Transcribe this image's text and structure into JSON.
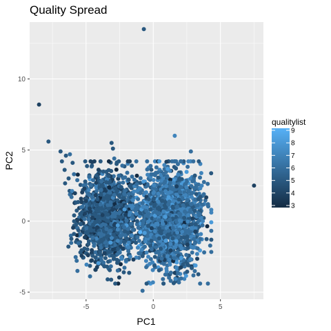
{
  "chart_data": {
    "type": "scatter",
    "title": "Quality Spread",
    "xlabel": "PC1",
    "ylabel": "PC2",
    "xlim": [
      -9.2,
      8.2
    ],
    "ylim": [
      -5.5,
      14.0
    ],
    "x_ticks": [
      -5,
      0,
      5
    ],
    "y_ticks": [
      -5,
      0,
      5,
      10
    ],
    "x_tick_labels": [
      "-5",
      "0",
      "5"
    ],
    "y_tick_labels": [
      "-5",
      "0",
      "5",
      "10"
    ],
    "grid": true,
    "legend": {
      "title": "qualitylist",
      "placement": "right",
      "min": 3,
      "max": 9,
      "ticks": [
        3,
        4,
        5,
        6,
        7,
        8,
        9
      ],
      "tick_labels": [
        "3",
        "4",
        "5",
        "6",
        "7",
        "8",
        "9"
      ],
      "low_color": "#132B43",
      "high_color": "#56B1F7"
    },
    "colors": {
      "panel_background": "#EBEBEB",
      "grid_major": "#FFFFFF",
      "low": "#132B43",
      "high": "#56B1F7"
    },
    "clusters": [
      {
        "cx": -3.4,
        "cy": 0.3,
        "sx": 1.1,
        "sy": 1.6,
        "n": 1300,
        "quality_mean": 5.1
      },
      {
        "cx": 1.2,
        "cy": 0.2,
        "sx": 1.2,
        "sy": 1.7,
        "n": 1800,
        "quality_mean": 6.1
      }
    ],
    "outliers": [
      {
        "x": -0.7,
        "y": 13.5,
        "q": 5
      },
      {
        "x": -8.5,
        "y": 8.2,
        "q": 4
      },
      {
        "x": -7.8,
        "y": 5.6,
        "q": 5
      },
      {
        "x": -6.9,
        "y": 4.9,
        "q": 5
      },
      {
        "x": -6.5,
        "y": 4.6,
        "q": 5
      },
      {
        "x": -6.2,
        "y": 4.7,
        "q": 6
      },
      {
        "x": -6.8,
        "y": 4.2,
        "q": 5
      },
      {
        "x": -6.0,
        "y": 4.1,
        "q": 5
      },
      {
        "x": -6.6,
        "y": 3.6,
        "q": 5
      },
      {
        "x": -5.9,
        "y": 3.3,
        "q": 6
      },
      {
        "x": -6.3,
        "y": 3.0,
        "q": 5
      },
      {
        "x": -3.1,
        "y": 5.5,
        "q": 5
      },
      {
        "x": -3.0,
        "y": 5.1,
        "q": 5
      },
      {
        "x": -2.9,
        "y": 4.4,
        "q": 6
      },
      {
        "x": -1.6,
        "y": 3.9,
        "q": 5
      },
      {
        "x": -2.3,
        "y": 3.9,
        "q": 6
      },
      {
        "x": 1.6,
        "y": 6.0,
        "q": 7
      },
      {
        "x": 2.8,
        "y": 4.9,
        "q": 6
      },
      {
        "x": 3.1,
        "y": 3.2,
        "q": 5
      },
      {
        "x": 3.2,
        "y": 1.9,
        "q": 5
      },
      {
        "x": 3.5,
        "y": 1.7,
        "q": 5
      },
      {
        "x": 3.4,
        "y": 0.4,
        "q": 6
      },
      {
        "x": 7.5,
        "y": 2.5,
        "q": 4
      },
      {
        "x": -0.8,
        "y": -4.9,
        "q": 6
      },
      {
        "x": -5.9,
        "y": -0.9,
        "q": 5
      },
      {
        "x": -5.0,
        "y": -0.8,
        "q": 5
      },
      {
        "x": -4.7,
        "y": -0.5,
        "q": 5
      },
      {
        "x": 1.3,
        "y": -4.2,
        "q": 6
      }
    ]
  }
}
